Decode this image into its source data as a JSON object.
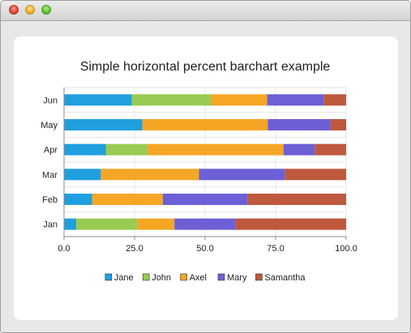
{
  "window": {
    "title": ""
  },
  "chart_data": {
    "type": "bar",
    "orientation": "horizontal",
    "stacked": "percent",
    "title": "Simple horizontal percent barchart example",
    "xlabel": "",
    "ylabel": "",
    "xlim": [
      0,
      100
    ],
    "x_ticks": [
      "0.0",
      "25.0",
      "50.0",
      "75.0",
      "100.0"
    ],
    "categories": [
      "Jan",
      "Feb",
      "Mar",
      "Apr",
      "May",
      "Jun"
    ],
    "series": [
      {
        "name": "Jane",
        "color": "#209fdf",
        "values": [
          1,
          2,
          3,
          4,
          5,
          6
        ]
      },
      {
        "name": "John",
        "color": "#99ca53",
        "values": [
          5,
          0,
          0,
          4,
          0,
          7
        ]
      },
      {
        "name": "Axel",
        "color": "#f6a625",
        "values": [
          3,
          5,
          8,
          13,
          8,
          5
        ]
      },
      {
        "name": "Mary",
        "color": "#6d5fd5",
        "values": [
          5,
          6,
          7,
          3,
          4,
          5
        ]
      },
      {
        "name": "Samantha",
        "color": "#bf593e",
        "values": [
          9,
          7,
          5,
          3,
          1,
          2
        ]
      }
    ],
    "grid": true,
    "legend_position": "bottom"
  }
}
